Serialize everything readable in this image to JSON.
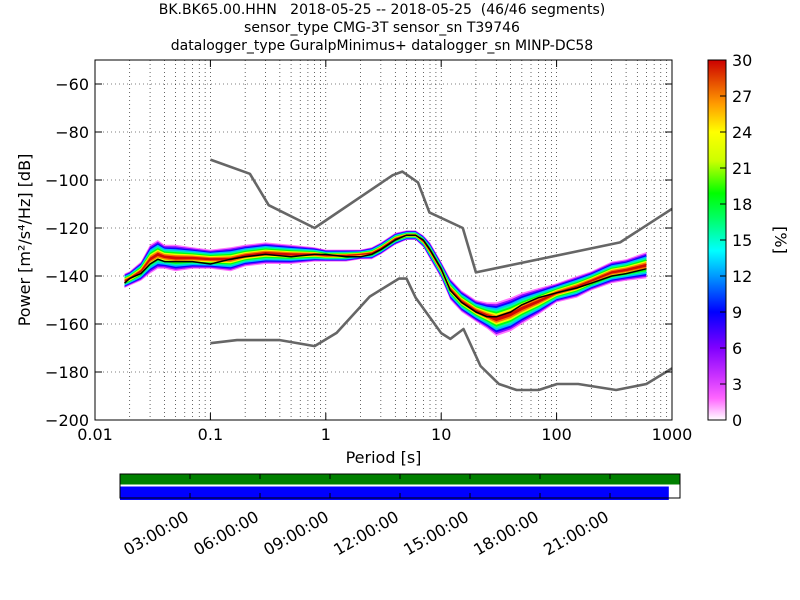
{
  "title_lines": [
    "BK.BK65.00.HHN   2018-05-25 -- 2018-05-25  (46/46 segments)",
    "sensor_type CMG-3T sensor_sn T39746",
    "datalogger_type GuralpMinimus+ datalogger_sn MINP-DC58"
  ],
  "chart_data": [
    {
      "type": "heatmap",
      "title": "BK.BK65.00.HHN   2018-05-25 -- 2018-05-25  (46/46 segments)",
      "xlabel": "Period [s]",
      "ylabel": "Power [m²/s⁴/Hz] [dB]",
      "x_scale": "log",
      "xlim": [
        0.01,
        1000
      ],
      "ylim": [
        -200,
        -50
      ],
      "x_ticks": [
        0.01,
        0.1,
        1,
        10,
        100,
        1000
      ],
      "x_tick_labels": [
        "0.01",
        "0.1",
        "1",
        "10",
        "100",
        "1000"
      ],
      "y_ticks": [
        -200,
        -180,
        -160,
        -140,
        -120,
        -100,
        -80,
        -60
      ],
      "y_tick_labels": [
        "−200",
        "−180",
        "−160",
        "−140",
        "−120",
        "−100",
        "−80",
        "−60"
      ],
      "grid": true,
      "colorbar": {
        "label": "[%]",
        "range": [
          0,
          30
        ],
        "ticks": [
          0,
          3,
          6,
          9,
          12,
          15,
          18,
          21,
          24,
          27,
          30
        ],
        "colormap": "pqlx"
      },
      "series": [
        {
          "name": "",
          "role": "high noise model",
          "color": "#666666",
          "x": [
            0.1,
            0.22,
            0.32,
            0.8,
            3.8,
            4.6,
            6.3,
            7.9,
            15.4,
            20,
            354.8,
            1000
          ],
          "y": [
            -91.5,
            -97.4,
            -110.5,
            -120,
            -98,
            -96.5,
            -101,
            -113.5,
            -120,
            -138.5,
            -126,
            -112
          ]
        },
        {
          "name": "",
          "role": "low noise model",
          "color": "#666666",
          "x": [
            0.1,
            0.17,
            0.4,
            0.8,
            1.24,
            2.4,
            4.3,
            5,
            6,
            10,
            12,
            15.6,
            21.9,
            31.6,
            45,
            70,
            101,
            154,
            328,
            600,
            1000
          ],
          "y": [
            -168,
            -166.7,
            -166.7,
            -169.2,
            -163.7,
            -148.6,
            -141.1,
            -141.1,
            -149,
            -163.8,
            -166.2,
            -162.1,
            -177.5,
            -185,
            -187.5,
            -187.5,
            -185,
            -185,
            -187.5,
            -185,
            -178.5
          ]
        },
        {
          "name": "",
          "role": "mode",
          "color": "#000000",
          "x": [
            0.018,
            0.02,
            0.025,
            0.03,
            0.035,
            0.04,
            0.05,
            0.07,
            0.1,
            0.15,
            0.2,
            0.3,
            0.5,
            0.8,
            1,
            1.5,
            2,
            2.5,
            3,
            4,
            5,
            6,
            7,
            8,
            10,
            12,
            15,
            20,
            25,
            30,
            40,
            50,
            70,
            100,
            150,
            200,
            300,
            400,
            600
          ],
          "y": [
            -143,
            -141,
            -139,
            -135,
            -133,
            -134,
            -134,
            -134,
            -135,
            -133,
            -132,
            -131,
            -132,
            -131,
            -131,
            -132,
            -132,
            -131,
            -129,
            -125,
            -123,
            -123,
            -125,
            -129,
            -137,
            -146,
            -151,
            -155,
            -157,
            -157,
            -155,
            -152,
            -149,
            -147,
            -145,
            -143,
            -140,
            -139,
            -137
          ]
        }
      ],
      "density_bands": [
        {
          "x": [
            0.018,
            0.02,
            0.025,
            0.03,
            0.035,
            0.04,
            0.05,
            0.07,
            0.1,
            0.15,
            0.2,
            0.3,
            0.5,
            0.8,
            1,
            1.5,
            2,
            2.5,
            3,
            4,
            5,
            6,
            7,
            8,
            10,
            12,
            15,
            20,
            25,
            30,
            40,
            50,
            70,
            100,
            150,
            200,
            300,
            400,
            600
          ],
          "y_low": [
            -145,
            -144,
            -142,
            -139,
            -137,
            -137,
            -138,
            -137,
            -137,
            -138,
            -136,
            -135,
            -135,
            -134,
            -134,
            -134,
            -133,
            -133,
            -131,
            -127,
            -125,
            -125,
            -128,
            -133,
            -141,
            -150,
            -155,
            -159,
            -162,
            -165,
            -163,
            -160,
            -156,
            -151,
            -149,
            -146,
            -143,
            -142,
            -141
          ],
          "y_high": [
            -139,
            -138,
            -134,
            -127,
            -125,
            -127,
            -127,
            -128,
            -129,
            -128,
            -127,
            -126,
            -127,
            -128,
            -129,
            -129,
            -129,
            -128,
            -126,
            -122,
            -121,
            -121,
            -123,
            -126,
            -134,
            -141,
            -146,
            -150,
            -151,
            -151,
            -149,
            -147,
            -145,
            -143,
            -140,
            -138,
            -134,
            -133,
            -130
          ]
        }
      ]
    },
    {
      "type": "bar",
      "role": "data availability",
      "x_tick_labels": [
        "03:00:00",
        "06:00:00",
        "09:00:00",
        "12:00:00",
        "15:00:00",
        "18:00:00",
        "21:00:00"
      ],
      "rows": [
        {
          "label": "",
          "color": "#008000",
          "coverage": [
            0,
            1
          ]
        },
        {
          "label": "",
          "color": "#0000ff",
          "coverage": [
            0,
            0.98
          ]
        }
      ]
    }
  ]
}
